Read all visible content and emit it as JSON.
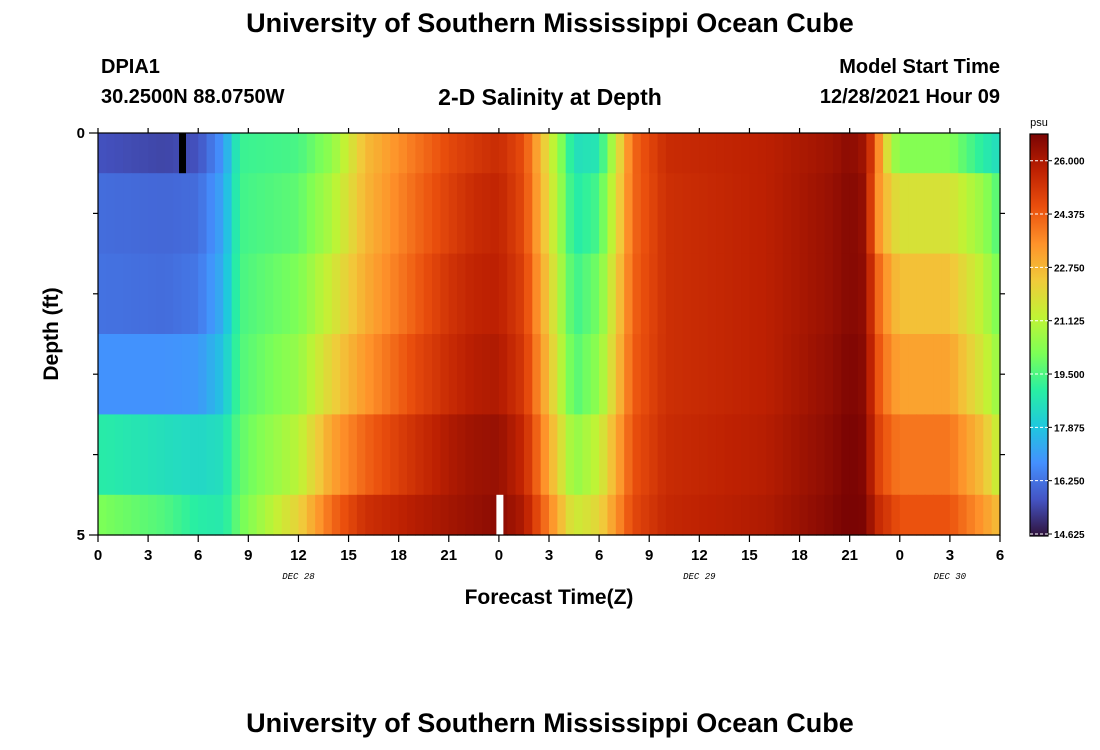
{
  "header": {
    "title": "University of Southern Mississippi Ocean Cube",
    "station": "DPIA1",
    "coords": "30.2500N  88.0750W",
    "subtitle": "2-D Salinity at Depth",
    "start_label": "Model Start Time",
    "start_value": "12/28/2021 Hour 09"
  },
  "footer": {
    "title": "University of Southern Mississippi Ocean Cube"
  },
  "chart_data": {
    "type": "heatmap",
    "xlabel": "Forecast Time(Z)",
    "ylabel": "Depth (ft)",
    "xlim": [
      0,
      54
    ],
    "ylim": [
      5,
      0
    ],
    "x_tick_labels": [
      "0",
      "3",
      "6",
      "9",
      "12",
      "15",
      "18",
      "21",
      "0",
      "3",
      "6",
      "9",
      "12",
      "15",
      "18",
      "21",
      "0",
      "3",
      "6"
    ],
    "y_tick_labels": [
      "0",
      "5"
    ],
    "date_labels": [
      {
        "text": "DEC 28",
        "hour": 12
      },
      {
        "text": "DEC 29",
        "hour": 36
      },
      {
        "text": "DEC 30",
        "hour": 51
      }
    ],
    "colorbar": {
      "unit": "psu",
      "min": 14.625,
      "max": 26.875,
      "tick_labels": [
        "26.000",
        "24.375",
        "22.750",
        "21.125",
        "19.500",
        "17.875",
        "16.250",
        "14.625"
      ],
      "colors": [
        "#30123b",
        "#4454c4",
        "#4490fe",
        "#1fc8de",
        "#29efa2",
        "#7dff56",
        "#c1f334",
        "#f1ca3a",
        "#fe922a",
        "#ea4f0d",
        "#be2102",
        "#7a0403"
      ]
    },
    "depth_layers_ft": [
      0.5,
      1.5,
      2.5,
      3.5,
      4.5,
      5.0
    ],
    "time_keys_hours": [
      0,
      4,
      6,
      7.5,
      8.5,
      12,
      14,
      16,
      19,
      21,
      22.5,
      24,
      25.5,
      27,
      28.5,
      30,
      32,
      34,
      40,
      44,
      45,
      46,
      46.5,
      47.5,
      48,
      51,
      53,
      54
    ],
    "salinity_psu": [
      [
        15.7,
        15.5,
        15.7,
        17.0,
        19.3,
        19.5,
        20.5,
        22.7,
        24.0,
        24.8,
        25.2,
        25.5,
        24.7,
        21.8,
        18.6,
        18.8,
        24.2,
        25.5,
        25.8,
        26.3,
        26.6,
        26.2,
        24.5,
        21.0,
        20.3,
        20.3,
        19.0,
        18.5
      ],
      [
        16.2,
        16.1,
        16.2,
        17.3,
        19.4,
        19.8,
        21.0,
        22.8,
        24.2,
        25.0,
        25.5,
        25.7,
        24.8,
        22.0,
        18.9,
        19.5,
        24.2,
        25.4,
        25.8,
        26.4,
        26.7,
        26.4,
        23.9,
        22.2,
        21.8,
        21.8,
        20.6,
        19.5
      ],
      [
        16.3,
        16.2,
        16.4,
        17.5,
        19.5,
        20.2,
        21.6,
        23.0,
        24.4,
        25.3,
        25.7,
        25.8,
        25.0,
        22.3,
        19.3,
        20.1,
        24.3,
        25.4,
        25.8,
        26.4,
        26.7,
        26.5,
        24.6,
        23.0,
        22.6,
        22.6,
        21.2,
        20.0
      ],
      [
        16.9,
        16.9,
        17.0,
        17.9,
        19.6,
        20.6,
        22.2,
        23.4,
        24.8,
        25.5,
        25.9,
        26.0,
        25.2,
        22.6,
        19.6,
        20.5,
        24.4,
        25.4,
        25.8,
        26.5,
        26.8,
        26.6,
        24.9,
        23.5,
        23.2,
        23.2,
        21.6,
        20.5
      ],
      [
        19.0,
        18.6,
        18.4,
        18.6,
        19.8,
        21.2,
        23.2,
        24.3,
        25.4,
        26.0,
        26.3,
        26.4,
        25.6,
        23.1,
        20.5,
        21.4,
        24.6,
        25.5,
        25.9,
        26.6,
        26.9,
        26.7,
        25.2,
        24.2,
        24.0,
        24.0,
        22.6,
        21.2
      ],
      [
        20.2,
        19.6,
        19.0,
        18.9,
        20.0,
        22.2,
        24.2,
        25.4,
        25.9,
        26.2,
        26.4,
        26.6,
        26.0,
        23.8,
        21.5,
        22.1,
        24.8,
        25.6,
        26.0,
        26.7,
        27.0,
        26.8,
        25.7,
        25.0,
        24.6,
        24.6,
        23.4,
        22.6
      ]
    ]
  }
}
